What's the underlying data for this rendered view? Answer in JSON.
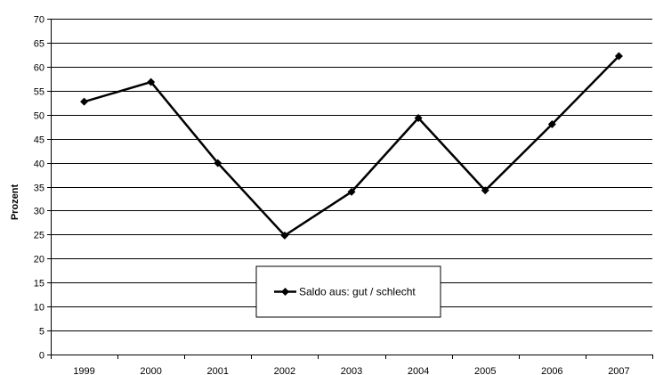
{
  "chart_data": {
    "type": "line",
    "title": "",
    "xlabel": "",
    "ylabel": "Prozent",
    "categories": [
      "1999",
      "2000",
      "2001",
      "2002",
      "2003",
      "2004",
      "2005",
      "2006",
      "2007"
    ],
    "series": [
      {
        "name": "Saldo aus: gut / schlecht",
        "values": [
          52.7,
          56.8,
          39.9,
          24.8,
          33.9,
          49.3,
          34.2,
          48.0,
          62.2
        ],
        "color": "#000000",
        "marker": "diamond"
      }
    ],
    "ylim": [
      0,
      70
    ],
    "yticks": [
      0,
      5,
      10,
      15,
      20,
      25,
      30,
      35,
      40,
      45,
      50,
      55,
      60,
      65,
      70
    ],
    "grid": "horizontal",
    "legend": "bottom-center"
  }
}
